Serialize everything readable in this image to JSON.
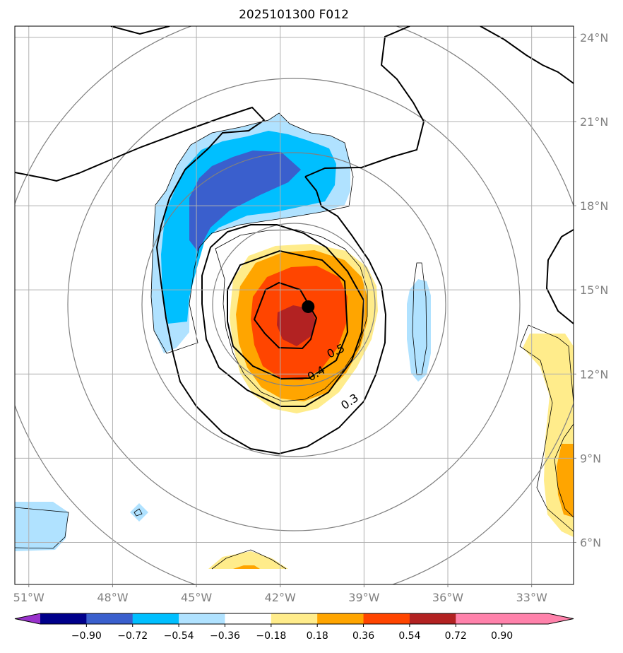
{
  "chart_data": {
    "type": "heatmap",
    "title": "2025101300 F012",
    "x_ticks": [
      "51°W",
      "48°W",
      "45°W",
      "42°W",
      "39°W",
      "36°W",
      "33°W"
    ],
    "x_tick_values": [
      -51,
      -48,
      -45,
      -42,
      -39,
      -36,
      -33
    ],
    "y_ticks": [
      "24°N",
      "21°N",
      "18°N",
      "15°N",
      "12°N",
      "9°N",
      "6°N"
    ],
    "y_tick_values": [
      24,
      21,
      18,
      15,
      12,
      9,
      6
    ],
    "xlim": [
      -51.5,
      -31.5
    ],
    "ylim": [
      4.5,
      24.4
    ],
    "grid": true,
    "center_marker": {
      "lon": -41.0,
      "lat": 14.4
    },
    "contour_labels": [
      {
        "text": "0.5",
        "lon": -40.0,
        "lat": 12.8,
        "angle": -25
      },
      {
        "text": "0.4",
        "lon": -40.7,
        "lat": 12.0,
        "angle": -30
      },
      {
        "text": "0.3",
        "lon": -39.5,
        "lat": 11.0,
        "angle": -35
      }
    ],
    "colorbar": {
      "tick_labels": [
        "−0.90",
        "−0.72",
        "−0.54",
        "−0.36",
        "−0.18",
        "0.18",
        "0.36",
        "0.54",
        "0.72",
        "0.90"
      ],
      "tick_values": [
        -0.9,
        -0.72,
        -0.54,
        -0.36,
        -0.18,
        0.18,
        0.36,
        0.54,
        0.72,
        0.9
      ],
      "colors": [
        "#9932CC",
        "#00008B",
        "#3A5FCD",
        "#00BFFF",
        "#B0E2FF",
        "#FFFFFF",
        "#FFEC8B",
        "#FFA500",
        "#FF4500",
        "#B22222",
        "#FF82AB"
      ],
      "extend": "both"
    }
  }
}
